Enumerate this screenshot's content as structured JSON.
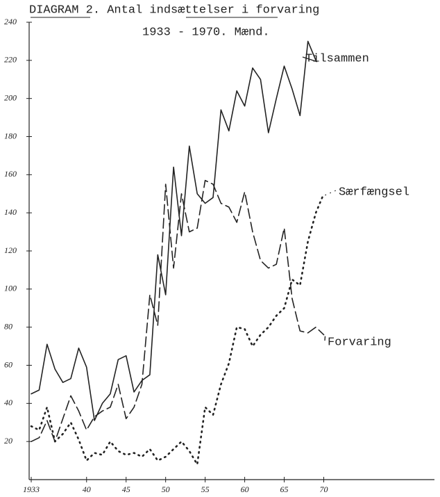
{
  "chart_data": {
    "type": "line",
    "title": "DIAGRAM 2. Antal indsættelser i forvaring",
    "subtitle": "1933 - 1970. Mænd.",
    "x": [
      1933,
      1934,
      1935,
      1936,
      1937,
      1938,
      1939,
      1940,
      1941,
      1942,
      1943,
      1944,
      1945,
      1946,
      1947,
      1948,
      1949,
      1950,
      1951,
      1952,
      1953,
      1954,
      1955,
      1956,
      1957,
      1958,
      1959,
      1960,
      1961,
      1962,
      1963,
      1964,
      1965,
      1966,
      1967,
      1968,
      1969,
      1970
    ],
    "series": [
      {
        "name": "Tilsammen",
        "color": "#222222",
        "style": "solid",
        "values": [
          45,
          47,
          71,
          58,
          51,
          53,
          69,
          59,
          31,
          40,
          45,
          63,
          65,
          46,
          52,
          55,
          118,
          97,
          164,
          128,
          175,
          150,
          145,
          148,
          194,
          183,
          204,
          196,
          216,
          210,
          182,
          200,
          217,
          205,
          191,
          230,
          220,
          null
        ]
      },
      {
        "name": "Særfængsel",
        "color": "#222222",
        "style": "dotted",
        "values": [
          28,
          26,
          38,
          20,
          24,
          30,
          21,
          10,
          14,
          13,
          20,
          15,
          13,
          14,
          12,
          16,
          10,
          12,
          16,
          20,
          15,
          8,
          38,
          34,
          50,
          61,
          80,
          79,
          70,
          76,
          80,
          86,
          90,
          105,
          102,
          125,
          140,
          150
        ]
      },
      {
        "name": "Forvaring",
        "color": "#222222",
        "style": "dashed",
        "values": [
          20,
          22,
          31,
          20,
          32,
          44,
          36,
          26,
          33,
          36,
          38,
          50,
          32,
          38,
          50,
          97,
          81,
          155,
          111,
          150,
          130,
          132,
          157,
          155,
          145,
          143,
          135,
          151,
          130,
          115,
          111,
          113,
          132,
          95,
          78,
          77,
          80,
          76
        ]
      }
    ],
    "xlim": [
      1933,
      1984
    ],
    "xticks": [
      1933,
      {
        "value": 1940,
        "label": "40"
      },
      {
        "value": 1945,
        "label": "45"
      },
      {
        "value": 1950,
        "label": "50"
      },
      {
        "value": 1955,
        "label": "55"
      },
      {
        "value": 1960,
        "label": "60"
      },
      {
        "value": 1965,
        "label": "65"
      },
      {
        "value": 1970,
        "label": "70"
      }
    ],
    "ylim": [
      0,
      240
    ],
    "yticks": [
      20,
      40,
      60,
      80,
      100,
      120,
      140,
      160,
      180,
      200,
      220,
      240
    ]
  }
}
